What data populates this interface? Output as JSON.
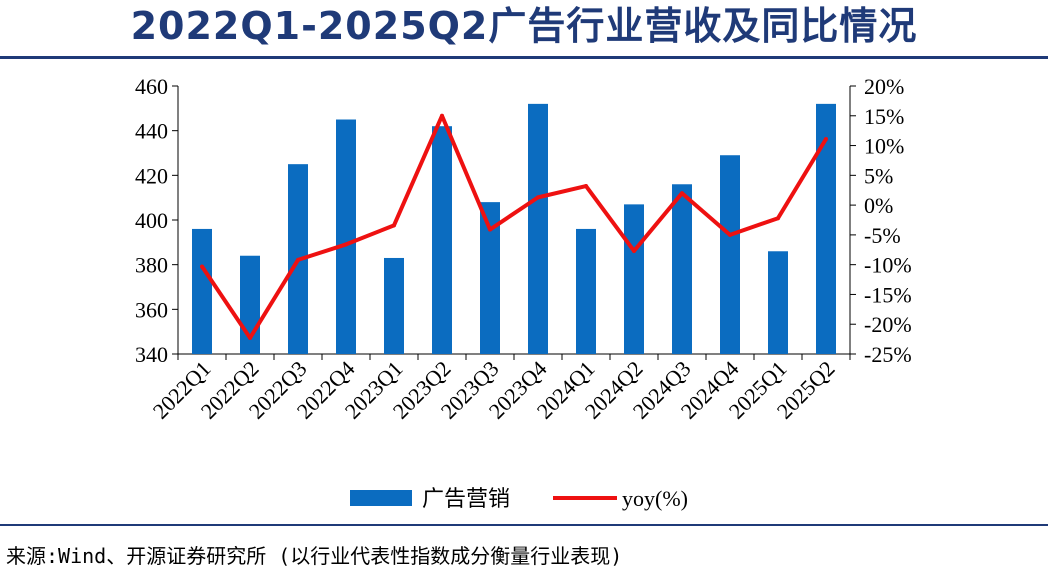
{
  "title": "2022Q1-2025Q2广告行业营收及同比情况",
  "source": "来源:Wind、开源证券研究所 (以行业代表性指数成分衡量行业表现)",
  "colors": {
    "title": "#1f3a78",
    "bar": "#0b6cc0",
    "line": "#ee1111"
  },
  "chart_data": {
    "type": "bar",
    "categories": [
      "2022Q1",
      "2022Q2",
      "2022Q3",
      "2022Q4",
      "2023Q1",
      "2023Q2",
      "2023Q3",
      "2023Q4",
      "2024Q1",
      "2024Q2",
      "2024Q3",
      "2024Q4",
      "2025Q1",
      "2025Q2"
    ],
    "series": [
      {
        "name": "广告营销",
        "type": "bar",
        "axis": "left",
        "values": [
          396,
          384,
          425,
          445,
          383,
          442,
          408,
          452,
          396,
          407,
          416,
          429,
          386,
          452
        ]
      },
      {
        "name": "yoy(%)",
        "type": "line",
        "axis": "right",
        "values": [
          -10.3,
          -22.3,
          -9.2,
          -6.6,
          -3.4,
          15.0,
          -4.1,
          1.3,
          3.2,
          -7.7,
          2.0,
          -5.0,
          -2.2,
          11.1
        ]
      }
    ],
    "left_axis": {
      "ylim": [
        340,
        460
      ],
      "ticks": [
        "340",
        "360",
        "380",
        "400",
        "420",
        "440",
        "460"
      ]
    },
    "right_axis": {
      "ylim": [
        -25,
        20
      ],
      "ticks": [
        "-25%",
        "-20%",
        "-15%",
        "-10%",
        "-5%",
        "0%",
        "5%",
        "10%",
        "15%",
        "20%"
      ]
    },
    "legend": {
      "placement": "bottom"
    },
    "grid": false
  }
}
